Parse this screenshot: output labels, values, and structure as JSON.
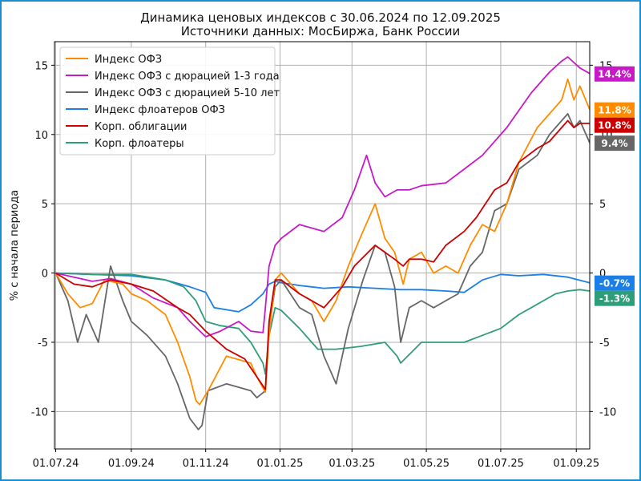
{
  "chart_data": {
    "type": "line",
    "title": "Динамика ценовых индексов с 30.06.2024 по 12.09.2025",
    "subtitle": "Источники данных: МосБиржа, Банк России",
    "xlabel": "",
    "ylabel": "% с начала периода",
    "ylim": [
      -12.7,
      16.7
    ],
    "yticks": [
      -10,
      -5,
      0,
      5,
      10,
      15
    ],
    "ytick_labels": [
      "-10",
      "-5",
      "0",
      "5",
      "10",
      "15"
    ],
    "xticks": [
      "01.07.24",
      "01.09.24",
      "01.11.24",
      "01.01.25",
      "01.03.25",
      "01.05.25",
      "01.07.25",
      "01.09.25"
    ],
    "xtick_day_index": [
      0,
      62,
      123,
      184,
      243,
      304,
      365,
      427
    ],
    "x_range_days": [
      -1,
      438
    ],
    "grid": true,
    "legend_position": "top-left",
    "series": [
      {
        "name": "Индекс ОФЗ",
        "color": "#ff8c00",
        "end_label": "11.8%",
        "days": [
          0,
          10,
          20,
          30,
          40,
          55,
          62,
          75,
          90,
          100,
          110,
          115,
          118,
          125,
          140,
          160,
          165,
          172,
          175,
          180,
          185,
          200,
          210,
          220,
          230,
          240,
          252,
          262,
          270,
          278,
          285,
          290,
          300,
          310,
          320,
          330,
          340,
          350,
          360,
          370,
          380,
          395,
          405,
          415,
          420,
          425,
          430,
          438
        ],
        "values": [
          0,
          -1.5,
          -2.5,
          -2.2,
          -0.5,
          -0.8,
          -1.5,
          -2.0,
          -3.0,
          -5.0,
          -7.5,
          -9.2,
          -9.5,
          -8.5,
          -6.0,
          -6.5,
          -7.5,
          -8.6,
          -4.5,
          -0.5,
          0.0,
          -1.5,
          -2.0,
          -3.5,
          -2.0,
          0.5,
          3.0,
          5.0,
          2.5,
          1.5,
          -0.8,
          1.0,
          1.5,
          0.0,
          0.5,
          0.0,
          2.0,
          3.5,
          3.0,
          5.0,
          8.0,
          10.5,
          11.5,
          12.5,
          14.0,
          12.5,
          13.5,
          11.8
        ]
      },
      {
        "name": "Индекс ОФЗ с дюрацией 1-3 года",
        "color": "#c71ac7",
        "end_label": "14.4%",
        "days": [
          0,
          15,
          30,
          45,
          62,
          80,
          100,
          110,
          123,
          135,
          150,
          160,
          170,
          172,
          175,
          180,
          185,
          200,
          220,
          235,
          245,
          255,
          262,
          270,
          280,
          290,
          300,
          320,
          335,
          350,
          370,
          390,
          405,
          415,
          420,
          425,
          430,
          438
        ],
        "values": [
          0,
          -0.3,
          -0.6,
          -0.4,
          -0.8,
          -1.8,
          -2.5,
          -3.5,
          -4.6,
          -4.2,
          -3.5,
          -4.2,
          -4.3,
          -2.5,
          0.5,
          2.0,
          2.5,
          3.5,
          3.0,
          4.0,
          6.0,
          8.5,
          6.5,
          5.5,
          6.0,
          6.0,
          6.3,
          6.5,
          7.5,
          8.5,
          10.5,
          13.0,
          14.5,
          15.3,
          15.6,
          15.2,
          14.8,
          14.4
        ]
      },
      {
        "name": "Индекс ОФЗ с дюрацией 5-10 лет",
        "color": "#666666",
        "end_label": "9.4%",
        "days": [
          0,
          10,
          18,
          25,
          35,
          45,
          55,
          62,
          75,
          90,
          100,
          110,
          117,
          120,
          125,
          140,
          160,
          165,
          172,
          175,
          180,
          185,
          200,
          210,
          220,
          230,
          240,
          252,
          262,
          270,
          278,
          283,
          290,
          300,
          310,
          320,
          330,
          340,
          350,
          360,
          370,
          380,
          395,
          405,
          415,
          420,
          425,
          430,
          438
        ],
        "values": [
          0,
          -2.0,
          -5.0,
          -3.0,
          -5.0,
          0.5,
          -2.0,
          -3.5,
          -4.5,
          -6.0,
          -8.0,
          -10.5,
          -11.3,
          -11.0,
          -8.5,
          -8.0,
          -8.5,
          -9.0,
          -8.5,
          -4.0,
          -1.0,
          -0.5,
          -2.5,
          -3.0,
          -6.0,
          -8.0,
          -4.0,
          -0.5,
          2.0,
          1.5,
          -1.0,
          -5.0,
          -2.5,
          -2.0,
          -2.5,
          -2.0,
          -1.5,
          0.5,
          1.5,
          4.5,
          5.0,
          7.5,
          8.5,
          10.0,
          11.0,
          11.5,
          10.5,
          11.0,
          9.4
        ]
      },
      {
        "name": "Индекс флоатеров ОФЗ",
        "color": "#1a7fe6",
        "end_label": "-0.7%",
        "days": [
          0,
          30,
          62,
          90,
          110,
          123,
          130,
          150,
          160,
          170,
          175,
          180,
          185,
          200,
          220,
          240,
          262,
          283,
          300,
          320,
          335,
          350,
          365,
          380,
          400,
          420,
          438
        ],
        "values": [
          0,
          -0.1,
          -0.2,
          -0.5,
          -1.0,
          -1.4,
          -2.5,
          -2.8,
          -2.3,
          -1.5,
          -0.8,
          -0.6,
          -0.7,
          -0.9,
          -1.1,
          -1.0,
          -1.1,
          -1.2,
          -1.2,
          -1.3,
          -1.4,
          -0.5,
          -0.1,
          -0.2,
          -0.1,
          -0.3,
          -0.7
        ]
      },
      {
        "name": "Корп. облигации",
        "color": "#cc0000",
        "end_label": "10.8%",
        "days": [
          0,
          15,
          30,
          45,
          62,
          80,
          100,
          110,
          123,
          140,
          155,
          165,
          172,
          175,
          180,
          185,
          200,
          220,
          235,
          245,
          262,
          278,
          285,
          290,
          300,
          310,
          320,
          335,
          345,
          360,
          370,
          380,
          395,
          405,
          415,
          420,
          425,
          430,
          438
        ],
        "values": [
          0,
          -0.8,
          -1.0,
          -0.5,
          -0.8,
          -1.3,
          -2.5,
          -3.0,
          -4.2,
          -5.5,
          -6.2,
          -7.5,
          -8.4,
          -3.5,
          -0.5,
          -0.5,
          -1.5,
          -2.5,
          -1.0,
          0.5,
          2.0,
          1.0,
          0.5,
          1.0,
          1.0,
          0.8,
          2.0,
          3.0,
          4.0,
          6.0,
          6.5,
          8.0,
          9.0,
          9.5,
          10.5,
          11.0,
          10.5,
          10.8,
          10.8
        ]
      },
      {
        "name": "Корп. флоатеры",
        "color": "#2e9e79",
        "end_label": "-1.3%",
        "days": [
          0,
          30,
          62,
          90,
          105,
          115,
          123,
          135,
          150,
          160,
          170,
          172,
          175,
          180,
          185,
          200,
          215,
          230,
          250,
          270,
          280,
          283,
          300,
          320,
          335,
          350,
          365,
          380,
          390,
          400,
          410,
          420,
          430,
          438
        ],
        "values": [
          0,
          -0.1,
          -0.1,
          -0.5,
          -1.0,
          -2.0,
          -3.5,
          -3.8,
          -4.0,
          -5.0,
          -6.5,
          -7.3,
          -4.5,
          -2.5,
          -2.7,
          -4.0,
          -5.5,
          -5.5,
          -5.3,
          -5.0,
          -6.0,
          -6.5,
          -5.0,
          -5.0,
          -5.0,
          -4.5,
          -4.0,
          -3.0,
          -2.5,
          -2.0,
          -1.5,
          -1.3,
          -1.2,
          -1.3
        ]
      }
    ]
  }
}
